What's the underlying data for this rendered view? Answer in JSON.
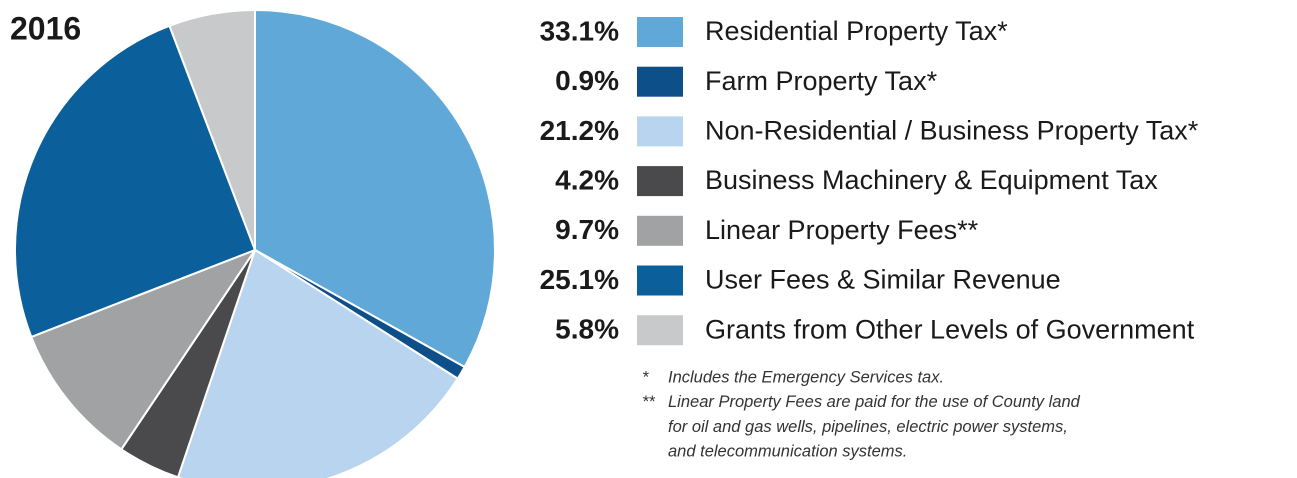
{
  "chart_data": {
    "type": "pie",
    "title": "2016",
    "categories": [
      "Residential Property Tax*",
      "Farm Property Tax*",
      "Non-Residential / Business Property Tax*",
      "Business Machinery & Equipment Tax",
      "Linear Property Fees**",
      "User Fees & Similar Revenue",
      "Grants from Other Levels of Government"
    ],
    "values": [
      33.1,
      0.9,
      21.2,
      4.2,
      9.7,
      25.1,
      5.8
    ],
    "value_labels": [
      "33.1%",
      "0.9%",
      "21.2%",
      "4.2%",
      "9.7%",
      "25.1%",
      "5.8%"
    ],
    "colors": [
      "#5fa8d8",
      "#0d4f88",
      "#b8d4ee",
      "#4a4a4d",
      "#a1a2a4",
      "#0b609b",
      "#c8c9cb"
    ],
    "notes": [
      {
        "marker": "*",
        "lines": [
          "Includes the Emergency Services tax."
        ]
      },
      {
        "marker": "**",
        "lines": [
          "Linear Property Fees are paid for the use of County land",
          "for oil and gas wells, pipelines, electric power systems,",
          "and telecommunication systems."
        ]
      }
    ]
  }
}
